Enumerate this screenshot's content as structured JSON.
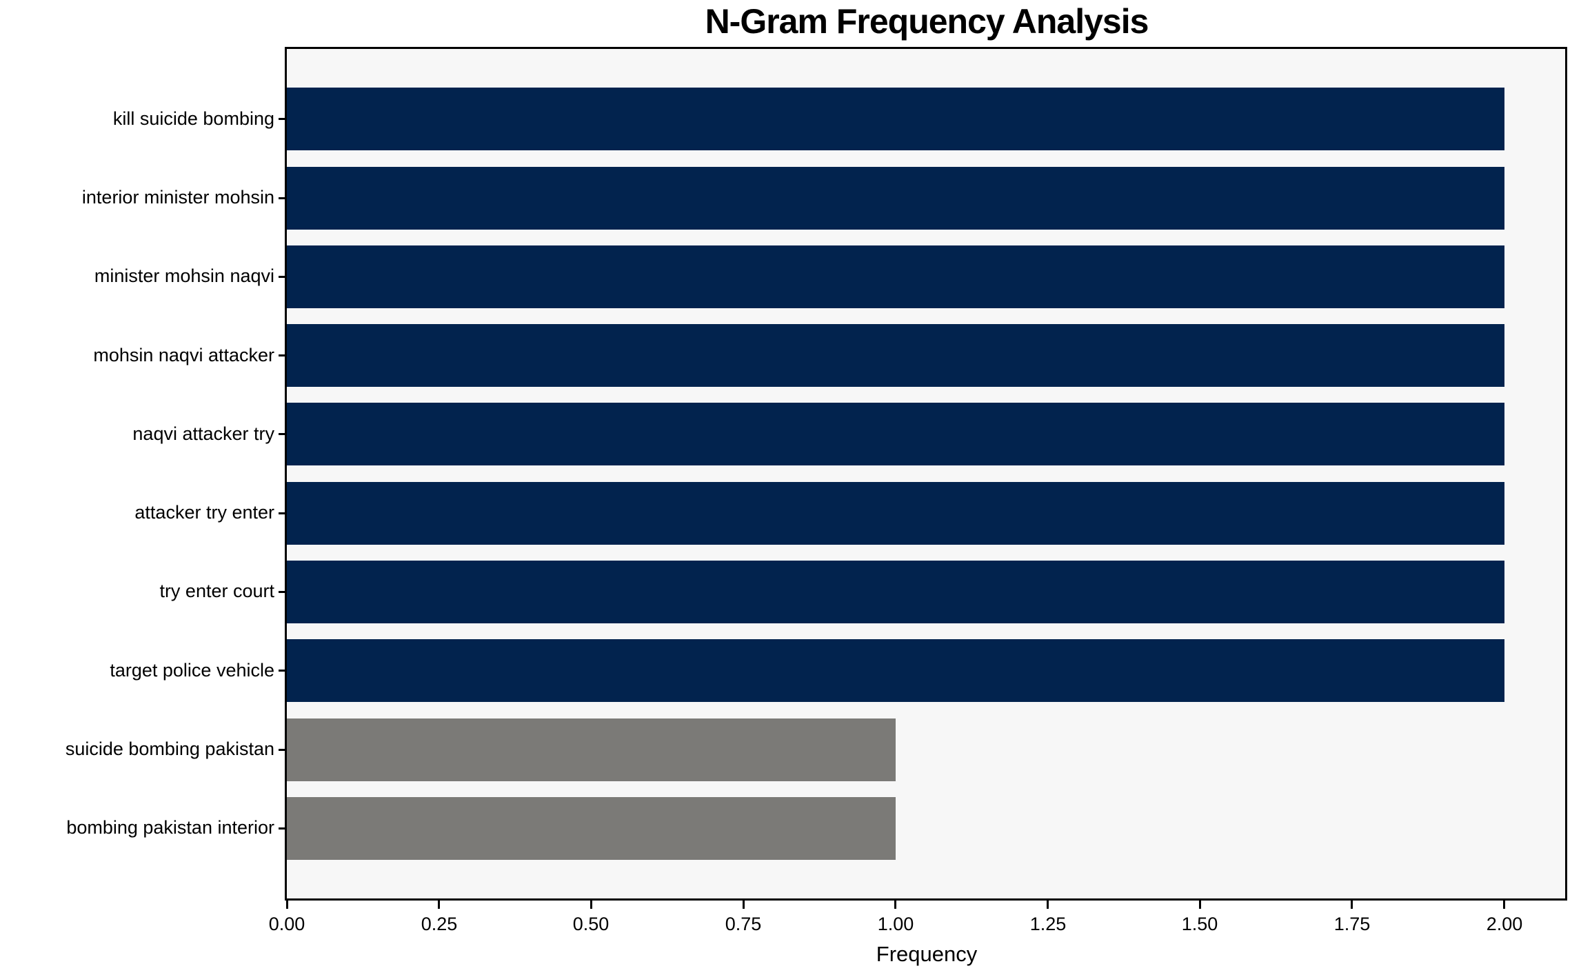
{
  "chart_data": {
    "type": "bar",
    "orientation": "horizontal",
    "title": "N-Gram Frequency Analysis",
    "xlabel": "Frequency",
    "ylabel": "",
    "categories": [
      "kill suicide bombing",
      "interior minister mohsin",
      "minister mohsin naqvi",
      "mohsin naqvi attacker",
      "naqvi attacker try",
      "attacker try enter",
      "try enter court",
      "target police vehicle",
      "suicide bombing pakistan",
      "bombing pakistan interior"
    ],
    "values": [
      2,
      2,
      2,
      2,
      2,
      2,
      2,
      2,
      1,
      1
    ],
    "bar_colors": [
      "#02234e",
      "#02234e",
      "#02234e",
      "#02234e",
      "#02234e",
      "#02234e",
      "#02234e",
      "#02234e",
      "#7b7a77",
      "#7b7a77"
    ],
    "xlim": [
      0,
      2.1
    ],
    "xticks": [
      0.0,
      0.25,
      0.5,
      0.75,
      1.0,
      1.25,
      1.5,
      1.75,
      2.0
    ],
    "xtick_labels": [
      "0.00",
      "0.25",
      "0.50",
      "0.75",
      "1.00",
      "1.25",
      "1.50",
      "1.75",
      "2.00"
    ],
    "grid": false,
    "legend": false,
    "colors": {
      "navy_bar": "#02234e",
      "gray_bar": "#7b7a77",
      "plot_background": "#f7f7f7",
      "figure_background": "#ffffff",
      "spine": "#000000",
      "text": "#000000"
    }
  }
}
